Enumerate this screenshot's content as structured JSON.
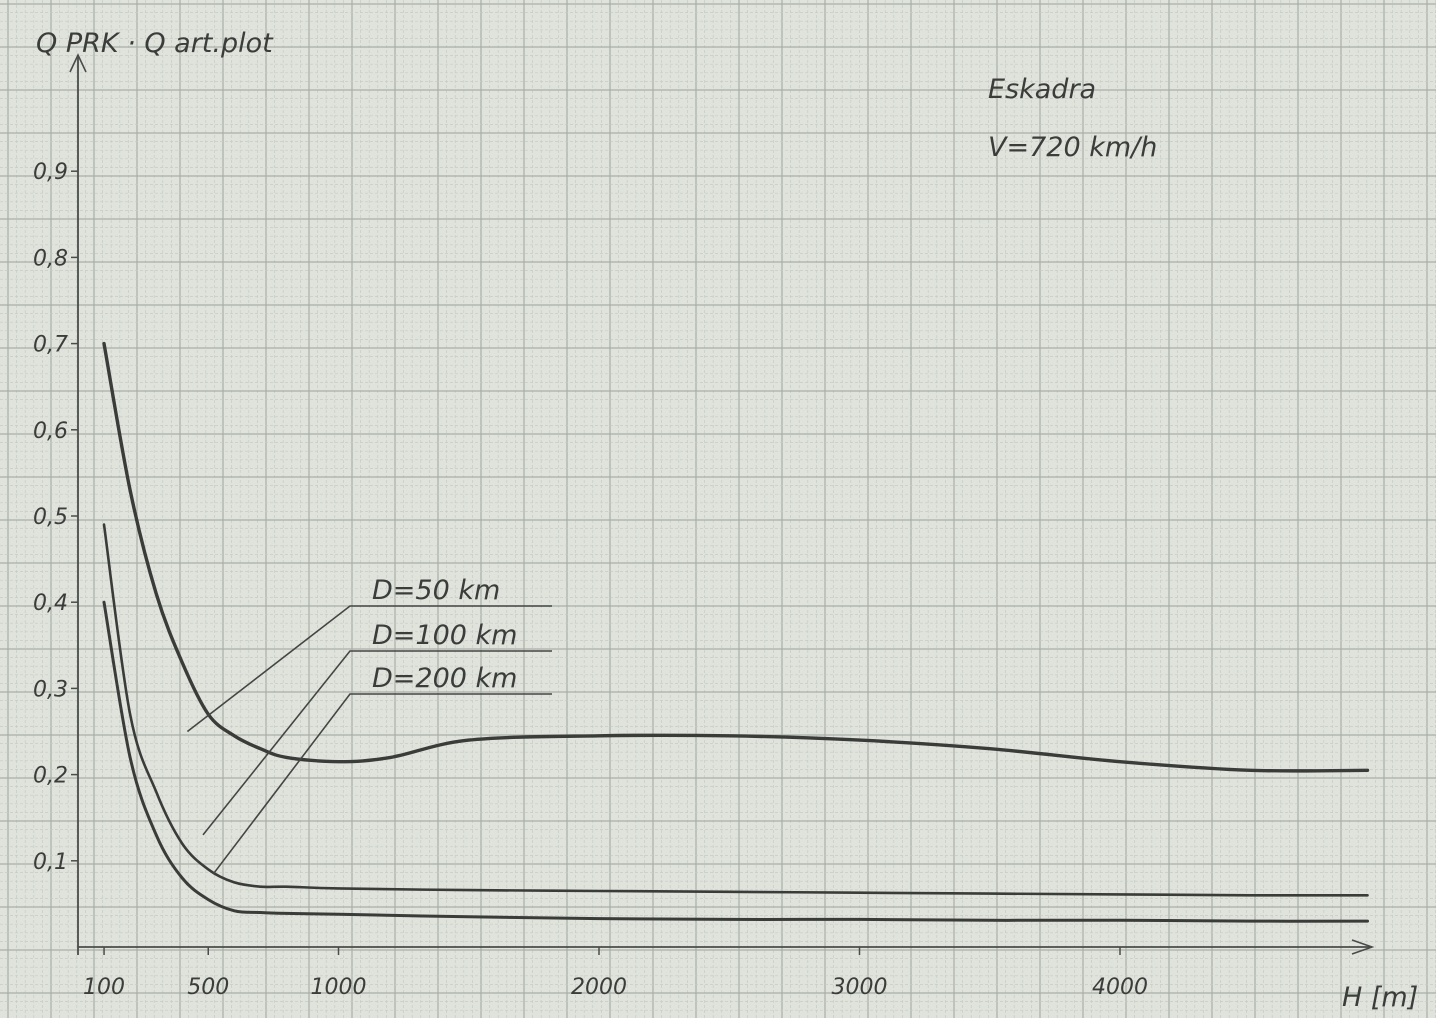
{
  "chart_data": {
    "type": "line",
    "ylabel": "Q PRK · Q art.plot",
    "xlabel": "H [m]",
    "annotations": [
      "Eskadra",
      "V=720 km/h"
    ],
    "x_ticks": [
      "100",
      "500",
      "1000",
      "2000",
      "3000",
      "4000"
    ],
    "y_ticks": [
      "0,1",
      "0,2",
      "0,3",
      "0,4",
      "0,5",
      "0,6",
      "0,7",
      "0,8",
      "0,9"
    ],
    "xlim": [
      0,
      4950
    ],
    "ylim": [
      0,
      1.0
    ],
    "series": [
      {
        "name": "D=50 km",
        "x": [
          100,
          200,
          300,
          400,
          500,
          600,
          700,
          800,
          1000,
          1200,
          1500,
          2000,
          2500,
          3000,
          3500,
          4000,
          4500,
          4950
        ],
        "y": [
          0.7,
          0.53,
          0.41,
          0.33,
          0.27,
          0.245,
          0.23,
          0.22,
          0.215,
          0.22,
          0.24,
          0.245,
          0.245,
          0.24,
          0.23,
          0.215,
          0.205,
          0.205
        ]
      },
      {
        "name": "D=100 km",
        "x": [
          100,
          200,
          300,
          400,
          500,
          600,
          700,
          800,
          1000,
          1500,
          2000,
          2500,
          3000,
          3500,
          4000,
          4500,
          4950
        ],
        "y": [
          0.49,
          0.27,
          0.18,
          0.12,
          0.09,
          0.075,
          0.07,
          0.07,
          0.068,
          0.066,
          0.065,
          0.064,
          0.063,
          0.062,
          0.061,
          0.06,
          0.06
        ]
      },
      {
        "name": "D=200 km",
        "x": [
          100,
          200,
          300,
          400,
          500,
          600,
          700,
          800,
          1000,
          1500,
          2000,
          2500,
          3000,
          3500,
          4000,
          4500,
          4950
        ],
        "y": [
          0.4,
          0.22,
          0.13,
          0.08,
          0.055,
          0.042,
          0.04,
          0.039,
          0.038,
          0.035,
          0.033,
          0.032,
          0.032,
          0.031,
          0.031,
          0.03,
          0.03
        ]
      }
    ]
  }
}
